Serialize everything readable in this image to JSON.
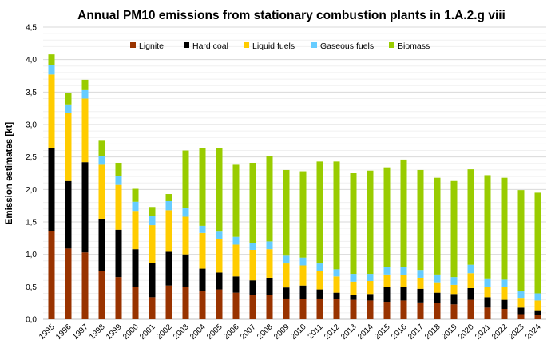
{
  "chart_data": {
    "type": "bar",
    "stacked": true,
    "title": "Annual PM10 emissions from stationary combustion plants in 1.A.2.g viii",
    "xlabel": "",
    "ylabel": "Emission estimates [kt]",
    "ylim": [
      0,
      4.5
    ],
    "yticks": [
      "0,0",
      "0,5",
      "1,0",
      "1,5",
      "2,0",
      "2,5",
      "3,0",
      "3,5",
      "4,0",
      "4,5"
    ],
    "grid": true,
    "legend_position": "top",
    "categories": [
      "1995",
      "1996",
      "1997",
      "1998",
      "1999",
      "2000",
      "2001",
      "2002",
      "2003",
      "2004",
      "2005",
      "2006",
      "2007",
      "2008",
      "2009",
      "2010",
      "2011",
      "2012",
      "2013",
      "2014",
      "2015",
      "2016",
      "2017",
      "2018",
      "2019",
      "2020",
      "2021",
      "2022",
      "2023",
      "2024"
    ],
    "series": [
      {
        "name": "Lignite",
        "color": "#993300",
        "values": [
          1.36,
          1.09,
          1.03,
          0.74,
          0.65,
          0.5,
          0.34,
          0.52,
          0.5,
          0.43,
          0.46,
          0.41,
          0.38,
          0.38,
          0.32,
          0.31,
          0.32,
          0.31,
          0.3,
          0.29,
          0.27,
          0.29,
          0.26,
          0.25,
          0.23,
          0.3,
          0.18,
          0.16,
          0.08,
          0.07
        ]
      },
      {
        "name": "Hard coal",
        "color": "#000000",
        "values": [
          1.28,
          1.04,
          1.39,
          0.81,
          0.73,
          0.58,
          0.53,
          0.52,
          0.5,
          0.35,
          0.26,
          0.25,
          0.22,
          0.26,
          0.17,
          0.21,
          0.14,
          0.1,
          0.07,
          0.1,
          0.23,
          0.21,
          0.21,
          0.16,
          0.16,
          0.18,
          0.16,
          0.14,
          0.1,
          0.07
        ]
      },
      {
        "name": "Liquid fuels",
        "color": "#FFCC00",
        "values": [
          1.13,
          1.05,
          0.98,
          0.83,
          0.69,
          0.59,
          0.58,
          0.64,
          0.58,
          0.55,
          0.51,
          0.49,
          0.47,
          0.44,
          0.37,
          0.31,
          0.28,
          0.25,
          0.21,
          0.2,
          0.19,
          0.18,
          0.17,
          0.16,
          0.14,
          0.23,
          0.16,
          0.2,
          0.15,
          0.15
        ]
      },
      {
        "name": "Gaseous fuels",
        "color": "#66CCFF",
        "values": [
          0.14,
          0.13,
          0.13,
          0.13,
          0.14,
          0.14,
          0.14,
          0.14,
          0.14,
          0.11,
          0.12,
          0.12,
          0.11,
          0.12,
          0.12,
          0.12,
          0.12,
          0.11,
          0.12,
          0.11,
          0.12,
          0.12,
          0.12,
          0.12,
          0.12,
          0.13,
          0.13,
          0.11,
          0.1,
          0.11
        ]
      },
      {
        "name": "Biomass",
        "color": "#99CC00",
        "values": [
          0.17,
          0.17,
          0.16,
          0.24,
          0.2,
          0.2,
          0.14,
          0.11,
          0.88,
          1.2,
          1.29,
          1.11,
          1.23,
          1.32,
          1.32,
          1.33,
          1.57,
          1.66,
          1.55,
          1.59,
          1.53,
          1.66,
          1.54,
          1.49,
          1.48,
          1.47,
          1.59,
          1.57,
          1.56,
          1.55
        ]
      }
    ]
  }
}
